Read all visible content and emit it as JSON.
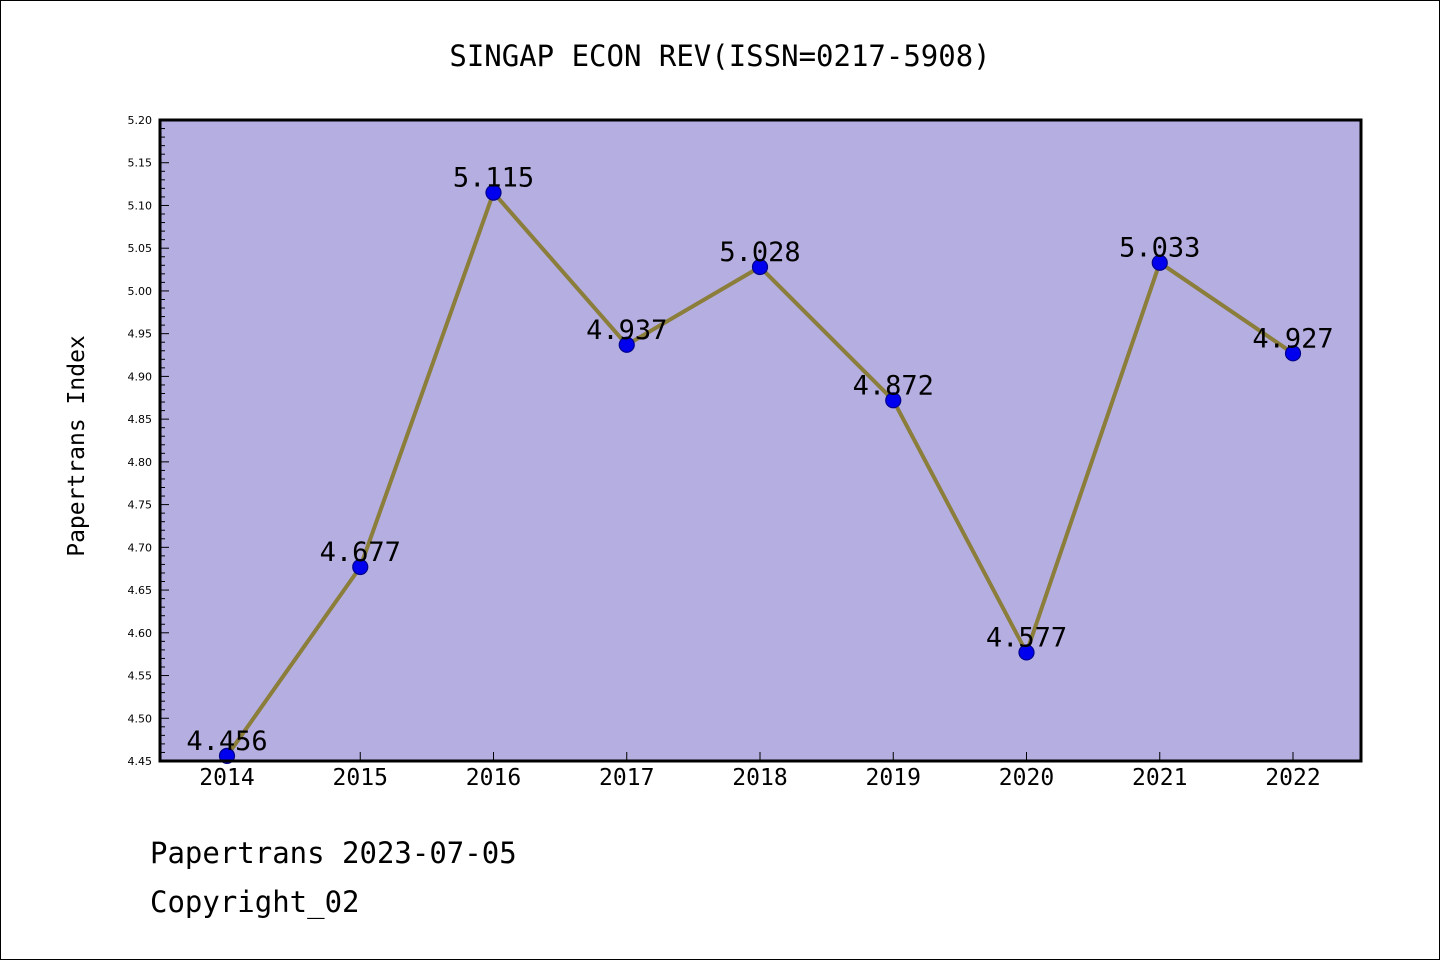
{
  "chart_data": {
    "type": "line",
    "title": "SINGAP ECON REV(ISSN=0217-5908)",
    "xlabel": "",
    "ylabel": "Papertrans Index",
    "categories": [
      "2014",
      "2015",
      "2016",
      "2017",
      "2018",
      "2019",
      "2020",
      "2021",
      "2022"
    ],
    "values": [
      4.456,
      4.677,
      5.115,
      4.937,
      5.028,
      4.872,
      4.577,
      5.033,
      4.927
    ],
    "data_labels": [
      "4.456",
      "4.677",
      "5.115",
      "4.937",
      "5.028",
      "4.872",
      "4.577",
      "5.033",
      "4.927"
    ],
    "ylim": [
      4.45,
      5.2
    ],
    "yticks": [
      "4.45",
      "4.50",
      "4.55",
      "4.60",
      "4.65",
      "4.70",
      "4.75",
      "4.80",
      "4.85",
      "4.90",
      "4.95",
      "5.00",
      "5.05",
      "5.10",
      "5.15",
      "5.20"
    ],
    "grid": false,
    "legend": "none",
    "colors": {
      "plot_background": "#b5aee0",
      "line": "#8b7d3a",
      "marker_fill": "#0000ee",
      "marker_edge": "#00008b"
    }
  },
  "footer": {
    "date_text": "Papertrans 2023-07-05",
    "copyright_text": "Copyright_02"
  }
}
